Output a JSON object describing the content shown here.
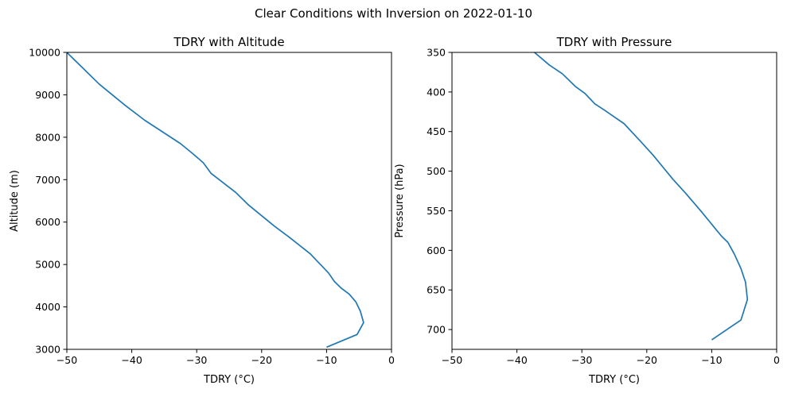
{
  "suptitle": "Clear Conditions with Inversion on 2022-01-10",
  "chart_data": [
    {
      "type": "line",
      "title": "TDRY with Altitude",
      "xlabel": "TDRY (°C)",
      "ylabel": "Altitude (m)",
      "xlim": [
        -50,
        0
      ],
      "ylim": [
        3000,
        10000
      ],
      "y_inverted": false,
      "xticks": [
        -50,
        -40,
        -30,
        -20,
        -10,
        0
      ],
      "yticks": [
        3000,
        4000,
        5000,
        6000,
        7000,
        8000,
        9000,
        10000
      ],
      "xtick_labels": [
        "−50",
        "−40",
        "−30",
        "−20",
        "−10",
        "0"
      ],
      "ytick_labels": [
        "3000",
        "4000",
        "5000",
        "6000",
        "7000",
        "8000",
        "9000",
        "10000"
      ],
      "color": "#1f77b4",
      "series": [
        {
          "x": [
            -10.0,
            -5.3,
            -4.3,
            -4.8,
            -5.5,
            -6.5,
            -7.8,
            -8.8,
            -9.7,
            -12.5,
            -15.8,
            -18.0,
            -20.0,
            -22.0,
            -24.0,
            -27.8,
            -29.0,
            -30.5,
            -32.5,
            -35.0,
            -38.0,
            -41.0,
            -43.0,
            -45.0,
            -48.0,
            -50.0
          ],
          "y": [
            3050,
            3350,
            3630,
            3900,
            4120,
            4300,
            4450,
            4600,
            4800,
            5250,
            5650,
            5900,
            6150,
            6400,
            6700,
            7150,
            7400,
            7600,
            7850,
            8100,
            8400,
            8750,
            9000,
            9250,
            9700,
            10000
          ]
        }
      ]
    },
    {
      "type": "line",
      "title": "TDRY with Pressure",
      "xlabel": "TDRY (°C)",
      "ylabel": "Pressure (hPa)",
      "xlim": [
        -50,
        0
      ],
      "ylim": [
        725,
        350
      ],
      "y_inverted": true,
      "xticks": [
        -50,
        -40,
        -30,
        -20,
        -10,
        0
      ],
      "yticks": [
        350,
        400,
        450,
        500,
        550,
        600,
        650,
        700
      ],
      "xtick_labels": [
        "−50",
        "−40",
        "−30",
        "−20",
        "−10",
        "0"
      ],
      "ytick_labels": [
        "350",
        "400",
        "450",
        "500",
        "550",
        "600",
        "650",
        "700"
      ],
      "color": "#1f77b4",
      "series": [
        {
          "x": [
            -10.0,
            -5.5,
            -4.5,
            -4.8,
            -5.5,
            -6.5,
            -7.5,
            -8.5,
            -9.5,
            -11.5,
            -14.0,
            -16.0,
            -17.5,
            -19.0,
            -21.0,
            -23.5,
            -26.5,
            -28.0,
            -29.5,
            -31.0,
            -33.0,
            -35.0,
            -37.3
          ],
          "y": [
            713,
            688,
            662,
            640,
            623,
            605,
            590,
            582,
            572,
            552,
            528,
            510,
            495,
            480,
            462,
            440,
            423,
            415,
            402,
            393,
            377,
            366,
            350
          ]
        }
      ]
    }
  ]
}
